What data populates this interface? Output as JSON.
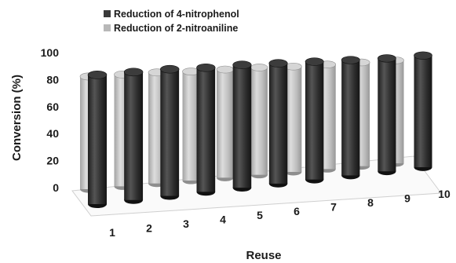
{
  "chart_data": {
    "type": "bar",
    "style": "3d-cylinder",
    "categories": [
      "1",
      "2",
      "3",
      "4",
      "5",
      "6",
      "7",
      "8",
      "9",
      "10"
    ],
    "series": [
      {
        "name": "Reduction of 4-nitrophenol",
        "color": "#3a3a3a",
        "values": [
          98,
          98,
          98,
          97,
          97,
          96,
          95,
          94,
          93,
          93
        ]
      },
      {
        "name": "Reduction of 2-nitroaniline",
        "color": "#b8b8b8",
        "values": [
          97,
          97,
          97,
          96,
          96,
          96,
          95,
          95,
          95,
          95
        ]
      }
    ],
    "title": "",
    "xlabel": "Reuse",
    "ylabel": "Conversion (%)",
    "ylim": [
      0,
      100
    ],
    "yticks": [
      "0",
      "20",
      "40",
      "60",
      "80",
      "100"
    ],
    "grid": false,
    "legend": "top-left"
  }
}
